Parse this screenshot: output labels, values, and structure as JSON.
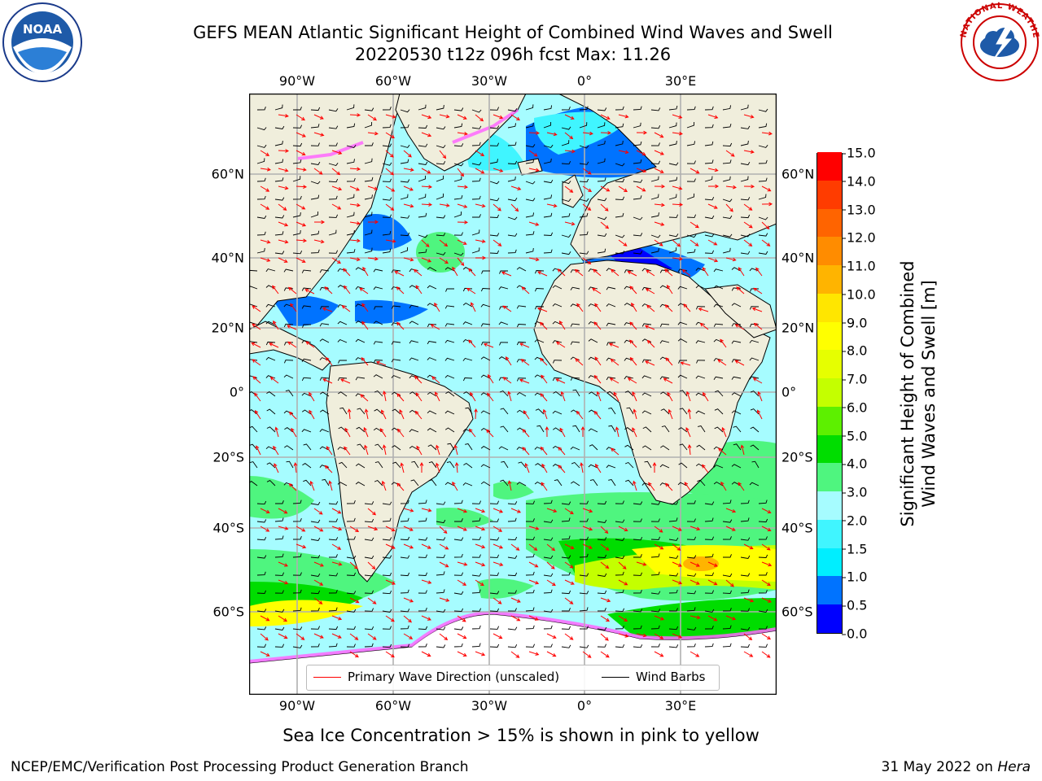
{
  "header": {
    "title_line1": "GEFS MEAN Atlantic Significant Height of Combined Wind Waves and Swell",
    "title_line2": "20220530 t12z 096h fcst   Max: 11.26"
  },
  "axes": {
    "lon_labels": [
      "90°W",
      "60°W",
      "30°W",
      "0°",
      "30°E"
    ],
    "lat_labels": [
      "60°N",
      "40°N",
      "20°N",
      "0°",
      "20°S",
      "40°S",
      "60°S"
    ]
  },
  "colorbar": {
    "label_line1": "Significant Height of Combined",
    "label_line2": "Wind Waves and Swell [m]",
    "ticks": [
      "0.0",
      "0.5",
      "1.0",
      "1.5",
      "2.0",
      "3.0",
      "4.0",
      "5.0",
      "6.0",
      "7.0",
      "8.0",
      "9.0",
      "10.0",
      "11.0",
      "12.0",
      "13.0",
      "14.0",
      "15.0"
    ],
    "colors": [
      "#0000ff",
      "#0073ff",
      "#00eeff",
      "#40f5ff",
      "#a6fcff",
      "#4ff57f",
      "#00dd00",
      "#5df000",
      "#c4ff00",
      "#e6ff00",
      "#ffff00",
      "#ffe600",
      "#ffb400",
      "#ff8c00",
      "#ff6400",
      "#ff3c00",
      "#ff0000"
    ]
  },
  "legend": {
    "wave_dir": "Primary Wave Direction (unscaled)",
    "wind_barbs": "Wind Barbs",
    "wave_dir_color": "#ff0000",
    "barb_color": "#000000"
  },
  "map_colors": {
    "land": "#f0eedc",
    "ocean_default": "#a6fcff",
    "ice": "#ff66ff",
    "antarctic": "#ffffff"
  },
  "footer": {
    "note": "Sea Ice Concentration > 15% is shown in pink to yellow",
    "credit": "NCEP/EMC/Verification Post Processing Product Generation Branch",
    "date": "31 May 2022 on ",
    "host": "Hera"
  },
  "logos": {
    "left": "NOAA",
    "right": "NATIONAL WEATHER SERVICE"
  }
}
